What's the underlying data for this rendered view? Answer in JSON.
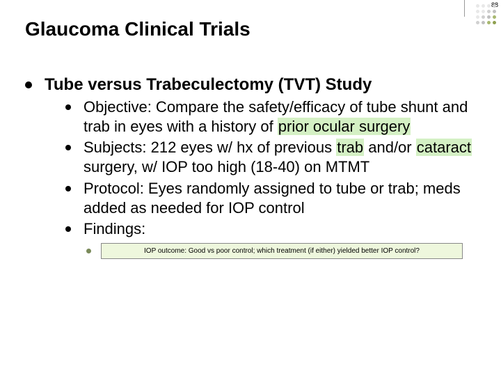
{
  "page_number": "88",
  "title": "Glaucoma Clinical Trials",
  "study_title": "Tube versus Trabeculectomy (TVT) Study",
  "items": {
    "objective_pre": "Objective: Compare the safety/efficacy of tube shunt and trab in eyes with a history of ",
    "objective_hl": "prior ocular surgery",
    "subjects_pre": "Subjects: 212 eyes w/ hx of previous ",
    "subjects_hl1": "trab",
    "subjects_mid": " and/or ",
    "subjects_hl2": "cataract",
    "subjects_post": " surgery, w/ IOP too high (18-40) on MTMT",
    "protocol": "Protocol: Eyes randomly assigned to tube or trab; meds added as needed for IOP control",
    "findings": "Findings:"
  },
  "findings_box": "IOP outcome: Good vs poor control; which treatment (if either) yielded better IOP control?",
  "corner_colors": [
    "#e8e8e8",
    "#e8e8e8",
    "#e8e8e8",
    "#d0d0d0",
    "#e8e8e8",
    "#e8e8e8",
    "#d0d0d0",
    "#c0c0c0",
    "#e8e8e8",
    "#d0d0d0",
    "#c0c0c0",
    "#a8b870",
    "#d0d0d0",
    "#c0c0c0",
    "#a8b870",
    "#8fa050"
  ]
}
